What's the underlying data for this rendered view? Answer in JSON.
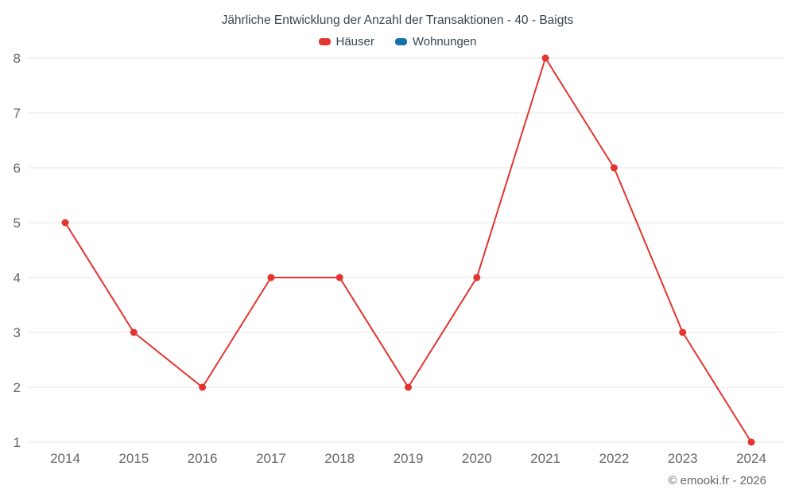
{
  "title": "Jährliche Entwicklung der Anzahl der Transaktionen - 40 - Baigts",
  "legend": [
    {
      "label": "Häuser",
      "color": "#e3342f"
    },
    {
      "label": "Wohnungen",
      "color": "#1272a8"
    }
  ],
  "footer": "© emooki.fr - 2026",
  "colors": {
    "grid": "#e6e6e6",
    "axis_text": "#666666",
    "title_text": "#37474f"
  },
  "chart_data": {
    "type": "line",
    "title": "Jährliche Entwicklung der Anzahl der Transaktionen - 40 - Baigts",
    "categories": [
      "2014",
      "2015",
      "2016",
      "2017",
      "2018",
      "2019",
      "2020",
      "2021",
      "2022",
      "2023",
      "2024"
    ],
    "series": [
      {
        "name": "Häuser",
        "color": "#e3342f",
        "values": [
          5,
          3,
          2,
          4,
          4,
          2,
          4,
          8,
          6,
          3,
          1
        ]
      },
      {
        "name": "Wohnungen",
        "color": "#1272a8",
        "values": []
      }
    ],
    "xlabel": "",
    "ylabel": "",
    "ylim": [
      1,
      8
    ],
    "yticks": [
      1,
      2,
      3,
      4,
      5,
      6,
      7,
      8
    ],
    "grid": true,
    "legend_position": "top",
    "marker": "circle"
  }
}
